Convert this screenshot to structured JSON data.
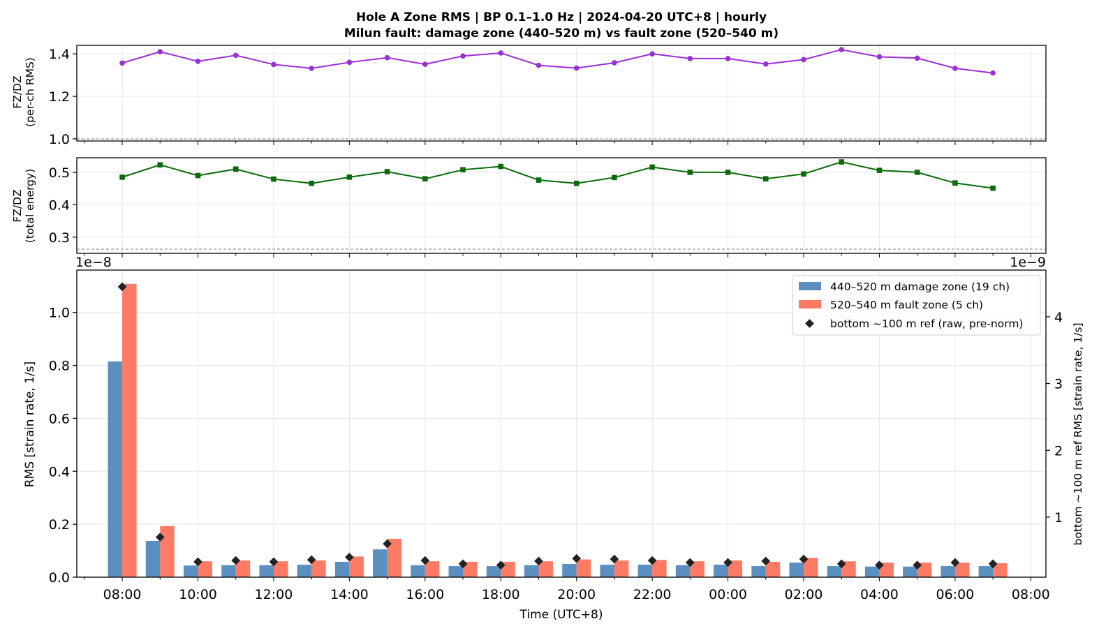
{
  "title_line1": "Hole A Zone RMS  |  BP 0.1–1.0 Hz  |  2024-04-20 UTC+8  |  hourly",
  "title_line2": "Milun fault: damage zone (440–520 m) vs fault zone (520–540 m)",
  "colors": {
    "damage": "#5b8fc0",
    "fault": "#fd7a65",
    "ref": "#222222",
    "ratio_rms": "#9a2fd6",
    "ratio_energy": "#0b6b0b",
    "grid": "#e6e6e6"
  },
  "chart_data": [
    {
      "type": "line",
      "ylabel_line1": "FZ/DZ",
      "ylabel_line2": "(per-ch RMS)",
      "ylim": [
        0.99,
        1.44
      ],
      "yticks": [
        "1.0",
        "1.2",
        "1.4"
      ],
      "ytick_values": [
        1.0,
        1.2,
        1.4
      ],
      "reference_line": 1.0,
      "grid": true,
      "series": [
        {
          "marker": "circle",
          "values": [
            1.357,
            1.41,
            1.365,
            1.393,
            1.35,
            1.332,
            1.36,
            1.382,
            1.351,
            1.39,
            1.404,
            1.346,
            1.333,
            1.358,
            1.4,
            1.378,
            1.378,
            1.352,
            1.373,
            1.42,
            1.386,
            1.38,
            1.332,
            1.31
          ]
        }
      ]
    },
    {
      "type": "line",
      "ylabel_line1": "FZ/DZ",
      "ylabel_line2": "(total energy)",
      "ylim": [
        0.25,
        0.545
      ],
      "yticks": [
        "0.3",
        "0.4",
        "0.5"
      ],
      "ytick_values": [
        0.3,
        0.4,
        0.5
      ],
      "reference_line": 0.263,
      "grid": true,
      "series": [
        {
          "marker": "square",
          "values": [
            0.485,
            0.523,
            0.49,
            0.51,
            0.479,
            0.466,
            0.485,
            0.502,
            0.48,
            0.508,
            0.518,
            0.476,
            0.466,
            0.484,
            0.516,
            0.5,
            0.5,
            0.48,
            0.495,
            0.532,
            0.506,
            0.5,
            0.467,
            0.451
          ]
        }
      ]
    },
    {
      "type": "bar",
      "categories": [
        "08:00",
        "09:00",
        "10:00",
        "11:00",
        "12:00",
        "13:00",
        "14:00",
        "15:00",
        "16:00",
        "17:00",
        "18:00",
        "19:00",
        "20:00",
        "21:00",
        "22:00",
        "23:00",
        "00:00",
        "01:00",
        "02:00",
        "03:00",
        "04:00",
        "05:00",
        "06:00",
        "07:00"
      ],
      "xticks": [
        "08:00",
        "10:00",
        "12:00",
        "14:00",
        "16:00",
        "18:00",
        "20:00",
        "22:00",
        "00:00",
        "02:00",
        "04:00",
        "06:00",
        "08:00"
      ],
      "xlabel": "Time (UTC+8)",
      "ylabel": "RMS  [strain rate, 1/s]",
      "y_offset_text": "1e−8",
      "ylim": [
        0,
        1.16
      ],
      "yticks": [
        "0.0",
        "0.2",
        "0.4",
        "0.6",
        "0.8",
        "1.0"
      ],
      "ytick_values": [
        0,
        0.2,
        0.4,
        0.6,
        0.8,
        1.0
      ],
      "y2label": "bottom ~100 m ref RMS  [strain rate, 1/s]",
      "y2_offset_text": "1e−9",
      "y2lim": [
        0.1,
        4.7
      ],
      "y2ticks": [
        "1",
        "2",
        "3",
        "4"
      ],
      "y2tick_values": [
        1,
        2,
        3,
        4
      ],
      "legend_position": "top-right",
      "grid": true,
      "series": [
        {
          "name": "440–520 m  damage zone (19 ch)",
          "kind": "bar",
          "values": [
            0.815,
            0.137,
            0.044,
            0.045,
            0.045,
            0.047,
            0.058,
            0.105,
            0.045,
            0.042,
            0.042,
            0.045,
            0.05,
            0.047,
            0.047,
            0.045,
            0.047,
            0.042,
            0.055,
            0.042,
            0.04,
            0.04,
            0.042,
            0.042
          ]
        },
        {
          "name": "520–540 m  fault zone (5 ch)",
          "kind": "bar",
          "values": [
            1.108,
            0.193,
            0.06,
            0.063,
            0.06,
            0.063,
            0.078,
            0.145,
            0.06,
            0.058,
            0.058,
            0.06,
            0.067,
            0.063,
            0.065,
            0.06,
            0.063,
            0.058,
            0.073,
            0.06,
            0.055,
            0.055,
            0.055,
            0.053
          ]
        },
        {
          "name": "bottom ~100 m ref (raw, pre-norm)",
          "kind": "marker",
          "axis": "right",
          "values": [
            4.45,
            0.7,
            0.33,
            0.35,
            0.33,
            0.36,
            0.4,
            0.6,
            0.35,
            0.3,
            0.28,
            0.34,
            0.38,
            0.37,
            0.35,
            0.32,
            0.32,
            0.34,
            0.37,
            0.3,
            0.28,
            0.28,
            0.32,
            0.3
          ]
        }
      ]
    }
  ]
}
